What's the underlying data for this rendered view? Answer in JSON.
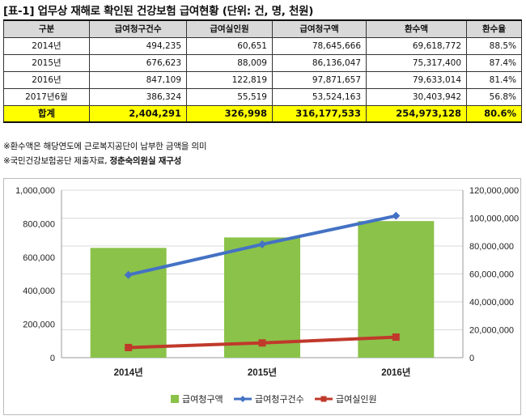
{
  "title": "[표-1] 업무상 재해로 확인된 건강보험 급여현황 (단위: 건, 명, 천원)",
  "table": {
    "headers": [
      "구분",
      "급여청구건수",
      "급여실인원",
      "급여청구액",
      "환수액",
      "환수율"
    ],
    "rows": [
      [
        "2014년",
        "494,235",
        "60,651",
        "78,645,666",
        "69,618,772",
        "88.5%"
      ],
      [
        "2015년",
        "676,623",
        "88,009",
        "86,136,047",
        "75,317,400",
        "87.4%"
      ],
      [
        "2016년",
        "847,109",
        "122,819",
        "97,871,657",
        "79,633,014",
        "81.4%"
      ],
      [
        "2017년6월",
        "386,324",
        "55,519",
        "53,524,163",
        "30,403,942",
        "56.8%"
      ]
    ],
    "total": [
      "합계",
      "2,404,291",
      "326,998",
      "316,177,533",
      "254,973,128",
      "80.6%"
    ]
  },
  "notes": {
    "note1": "※환수액은 해당연도에 근로복지공단이 납부한 금액을 의미",
    "note2_prefix": "※국민건강보험공단 제출자료, ",
    "note2_bold": "정춘숙의원실 재구성"
  },
  "colors": {
    "bar": "#8bc24a",
    "line_claims": "#4472c4",
    "line_people": "#c0392b",
    "total_row": "#ffff00",
    "header_row": "#d9d9d9"
  },
  "chart_data": {
    "type": "bar",
    "categories": [
      "2014년",
      "2015년",
      "2016년"
    ],
    "series": [
      {
        "name": "급여청구액",
        "kind": "bar",
        "axis": "right",
        "values": [
          78645666,
          86136047,
          97871657
        ]
      },
      {
        "name": "급여청구건수",
        "kind": "line",
        "axis": "left",
        "values": [
          494235,
          676623,
          847109
        ]
      },
      {
        "name": "급여실인원",
        "kind": "line",
        "axis": "left",
        "values": [
          60651,
          88009,
          122819
        ]
      }
    ],
    "left_axis": {
      "ylim": [
        0,
        1000000
      ],
      "ticks": [
        "0",
        "200,000",
        "400,000",
        "600,000",
        "800,000",
        "1,000,000"
      ]
    },
    "right_axis": {
      "ylim": [
        0,
        120000000
      ],
      "ticks": [
        "0",
        "20,000,000",
        "40,000,000",
        "60,000,000",
        "80,000,000",
        "100,000,000",
        "120,000,000"
      ]
    },
    "grid": true,
    "legend_position": "bottom"
  }
}
